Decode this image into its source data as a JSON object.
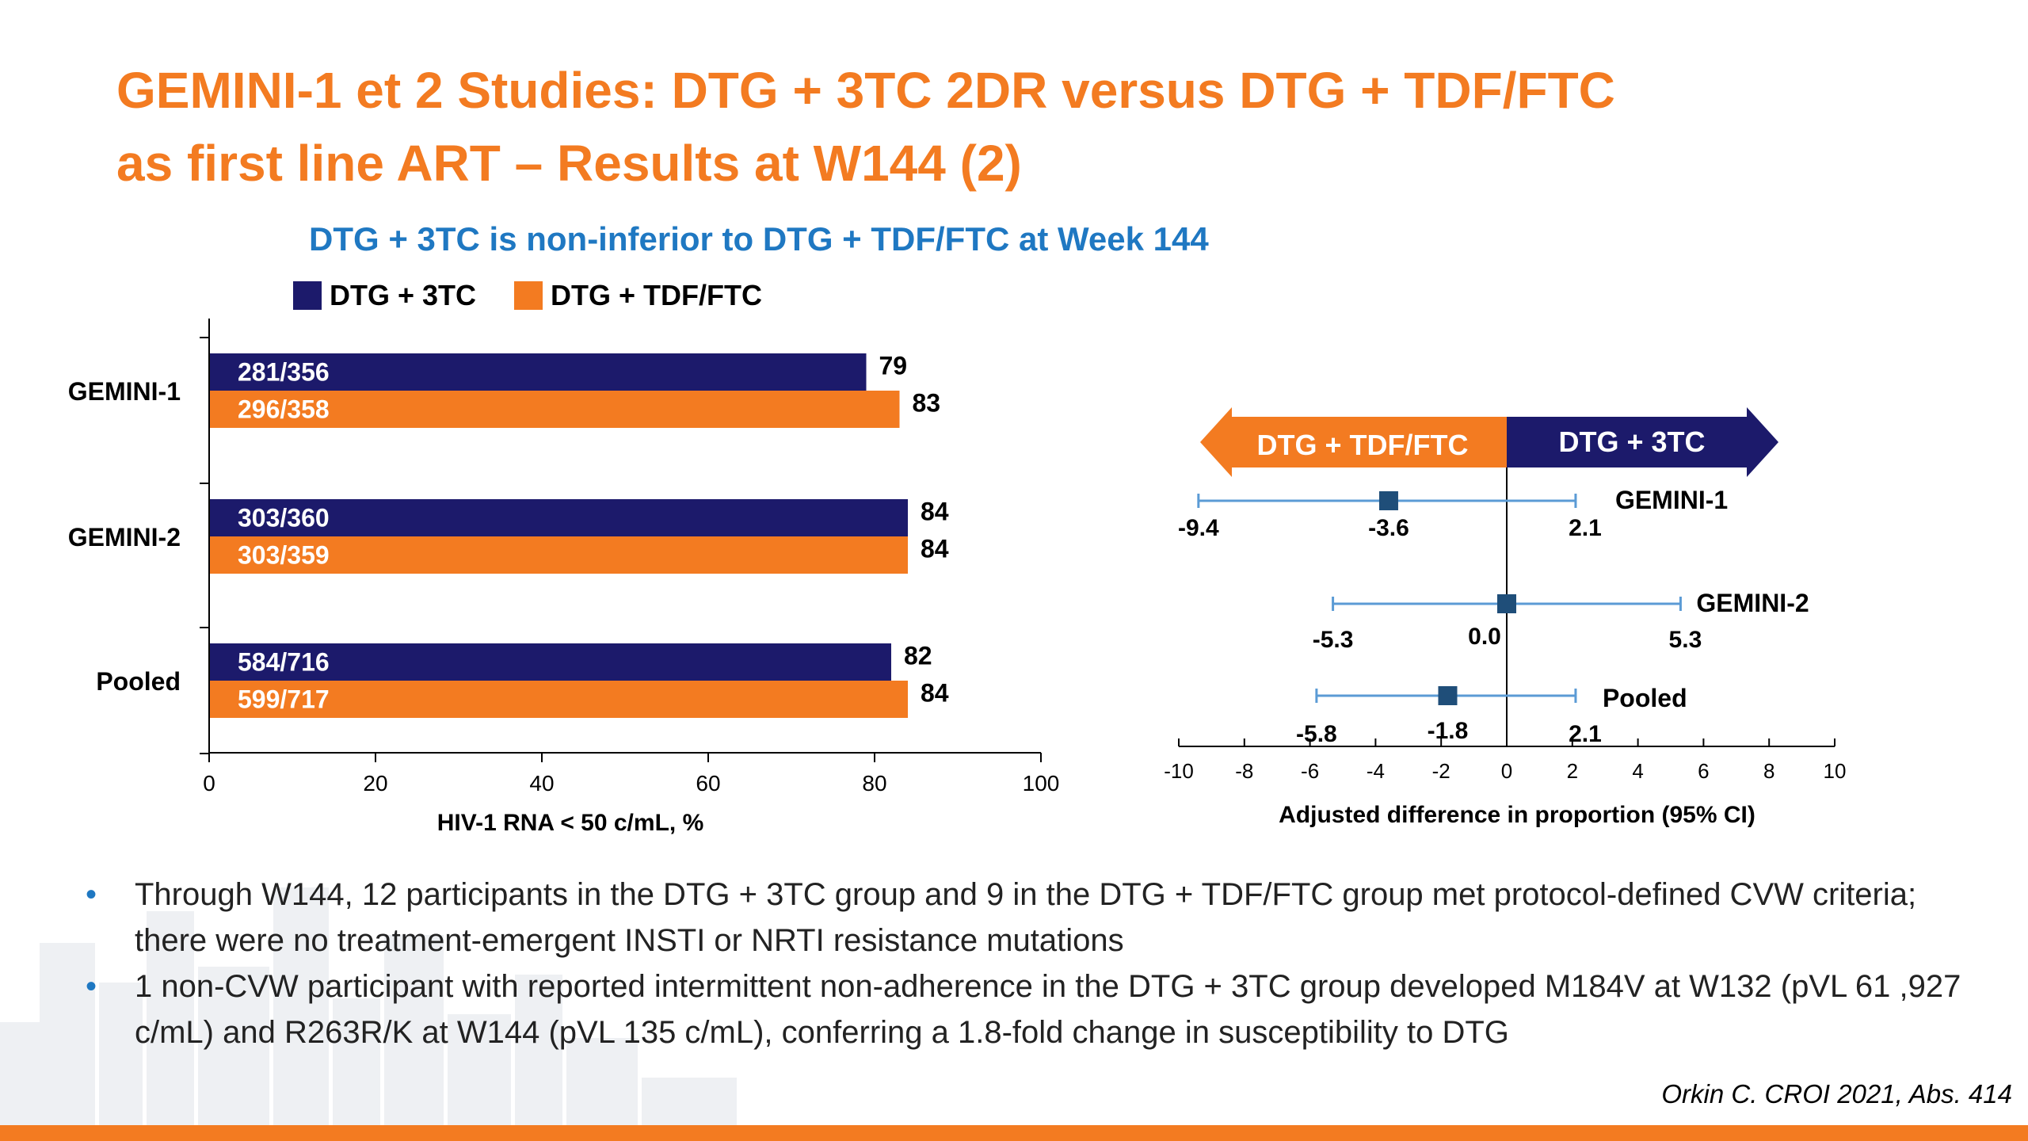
{
  "title": {
    "line1": "GEMINI-1 et 2 Studies: DTG + 3TC 2DR versus DTG + TDF/FTC",
    "line2": "as first line ART – Results at W144 (2)"
  },
  "subtitle": "DTG + 3TC is non-inferior to DTG + TDF/FTC at Week 144",
  "legend": [
    {
      "label": "DTG + 3TC",
      "color": "#1c1a6b"
    },
    {
      "label": "DTG + TDF/FTC",
      "color": "#f37b21"
    }
  ],
  "colors": {
    "navy": "#1c1a6b",
    "orange": "#f37b21",
    "accent_blue": "#1f78c2",
    "forest_marker": "#1f4e79",
    "ci_line": "#5b9bd5"
  },
  "chart_data": [
    {
      "type": "bar",
      "orientation": "horizontal",
      "categories": [
        "GEMINI-1",
        "GEMINI-2",
        "Pooled"
      ],
      "series": [
        {
          "name": "DTG + 3TC",
          "values": [
            79,
            84,
            82
          ],
          "labels": [
            "281/356",
            "303/360",
            "584/716"
          ]
        },
        {
          "name": "DTG + TDF/FTC",
          "values": [
            83,
            84,
            84
          ],
          "labels": [
            "296/358",
            "303/359",
            "599/717"
          ]
        }
      ],
      "xlabel": "HIV-1 RNA < 50 c/mL, %",
      "xlim": [
        0,
        100
      ],
      "xticks": [
        0,
        20,
        40,
        60,
        80,
        100
      ],
      "legend": "top-left"
    },
    {
      "type": "scatter",
      "subtype": "forest",
      "studies": [
        {
          "name": "GEMINI-1",
          "estimate": -3.6,
          "lower": -9.4,
          "upper": 2.1,
          "estimate_label": "-3.6",
          "lower_label": "-9.4",
          "upper_label": "2.1"
        },
        {
          "name": "GEMINI-2",
          "estimate": 0.0,
          "lower": -5.3,
          "upper": 5.3,
          "estimate_label": "0.0",
          "lower_label": "-5.3",
          "upper_label": "5.3"
        },
        {
          "name": "Pooled",
          "estimate": -1.8,
          "lower": -5.8,
          "upper": 2.1,
          "estimate_label": "-1.8",
          "lower_label": "-5.8",
          "upper_label": "2.1"
        }
      ],
      "xlabel": "Adjusted difference in proportion (95% CI)",
      "xlim": [
        -10,
        10
      ],
      "xticks": [
        -10,
        -8,
        -6,
        -4,
        -2,
        0,
        2,
        4,
        6,
        8,
        10
      ],
      "favors_left": "DTG + TDF/FTC",
      "favors_right": "DTG + 3TC"
    }
  ],
  "bullets": [
    "Through W144, 12 participants in the DTG + 3TC group and 9 in the DTG + TDF/FTC group met protocol-defined CVW criteria; there were no treatment-emergent INSTI or NRTI resistance mutations",
    "1 non-CVW participant with reported intermittent non-adherence in the DTG + 3TC group developed M184V at W132 (pVL 61 ,927 c/mL) and R263R/K at W144 (pVL 135 c/mL), conferring a 1.8-fold change in susceptibility to DTG"
  ],
  "bullet_marker": "•",
  "citation": "Orkin C. CROI 2021, Abs. 414"
}
